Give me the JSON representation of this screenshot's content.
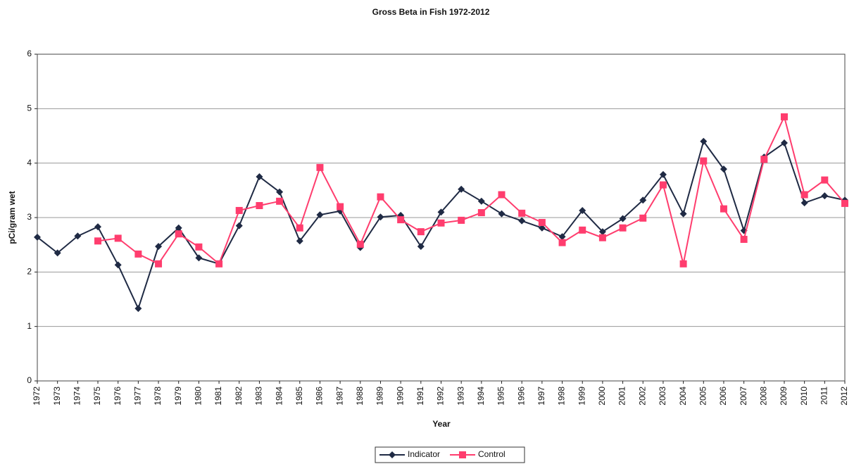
{
  "chart_data": {
    "type": "line",
    "title": "Gross Beta in Fish 1972-2012",
    "x_label": "Year",
    "y_label": "pCi/gram wet",
    "categories": [
      "1972",
      "1973",
      "1974",
      "1975",
      "1976",
      "1977",
      "1978",
      "1979",
      "1980",
      "1981",
      "1982",
      "1983",
      "1984",
      "1985",
      "1986",
      "1987",
      "1988",
      "1989",
      "1990",
      "1991",
      "1992",
      "1993",
      "1994",
      "1995",
      "1996",
      "1997",
      "1998",
      "1999",
      "2000",
      "2001",
      "2002",
      "2003",
      "2004",
      "2005",
      "2006",
      "2007",
      "2008",
      "2009",
      "2010",
      "2011",
      "2012"
    ],
    "series": [
      {
        "name": "Indicator",
        "color": "#1f2a44",
        "marker": "diamond",
        "values": [
          2.64,
          2.35,
          2.66,
          2.83,
          2.13,
          1.33,
          2.47,
          2.81,
          2.26,
          2.15,
          2.85,
          3.75,
          3.47,
          2.57,
          3.05,
          3.12,
          2.45,
          3.01,
          3.04,
          2.47,
          3.1,
          3.52,
          3.3,
          3.07,
          2.94,
          2.81,
          2.65,
          3.13,
          2.74,
          2.98,
          3.32,
          3.79,
          3.07,
          4.4,
          3.89,
          2.76,
          4.11,
          4.37,
          3.27,
          3.4,
          3.32
        ]
      },
      {
        "name": "Control",
        "color": "#ff3d6e",
        "marker": "square",
        "values": [
          null,
          null,
          null,
          2.57,
          2.62,
          2.33,
          2.15,
          2.7,
          2.46,
          2.15,
          3.13,
          3.22,
          3.3,
          2.81,
          3.92,
          3.2,
          2.51,
          3.38,
          2.96,
          2.74,
          2.9,
          2.95,
          3.09,
          3.42,
          3.08,
          2.91,
          2.54,
          2.77,
          2.63,
          2.81,
          2.99,
          3.6,
          2.15,
          4.04,
          3.16,
          2.6,
          4.07,
          4.85,
          3.42,
          3.69,
          3.26
        ]
      }
    ],
    "ylim": [
      0,
      6
    ],
    "yticks": [
      0,
      1,
      2,
      3,
      4,
      5,
      6
    ],
    "grid": true,
    "legend": "bottom"
  }
}
